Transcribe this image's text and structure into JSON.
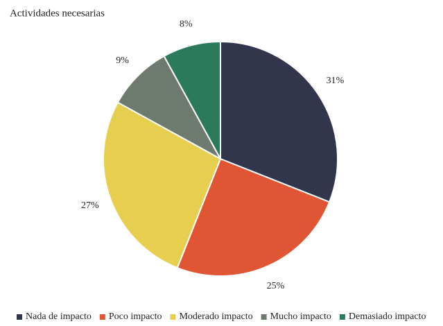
{
  "chart_data": {
    "type": "pie",
    "title": "Actividades necesarias",
    "categories": [
      "Nada de impacto",
      "Poco impacto",
      "Moderado impacto",
      "Mucho impacto",
      "Demasiado impacto"
    ],
    "values": [
      31,
      25,
      27,
      9,
      8
    ],
    "value_labels": [
      "31%",
      "25%",
      "27%",
      "9%",
      "8%"
    ],
    "colors": [
      "#32364d",
      "#e05533",
      "#e6cf4f",
      "#6f7a6e",
      "#2b7a5c"
    ],
    "legend": "bottom"
  }
}
